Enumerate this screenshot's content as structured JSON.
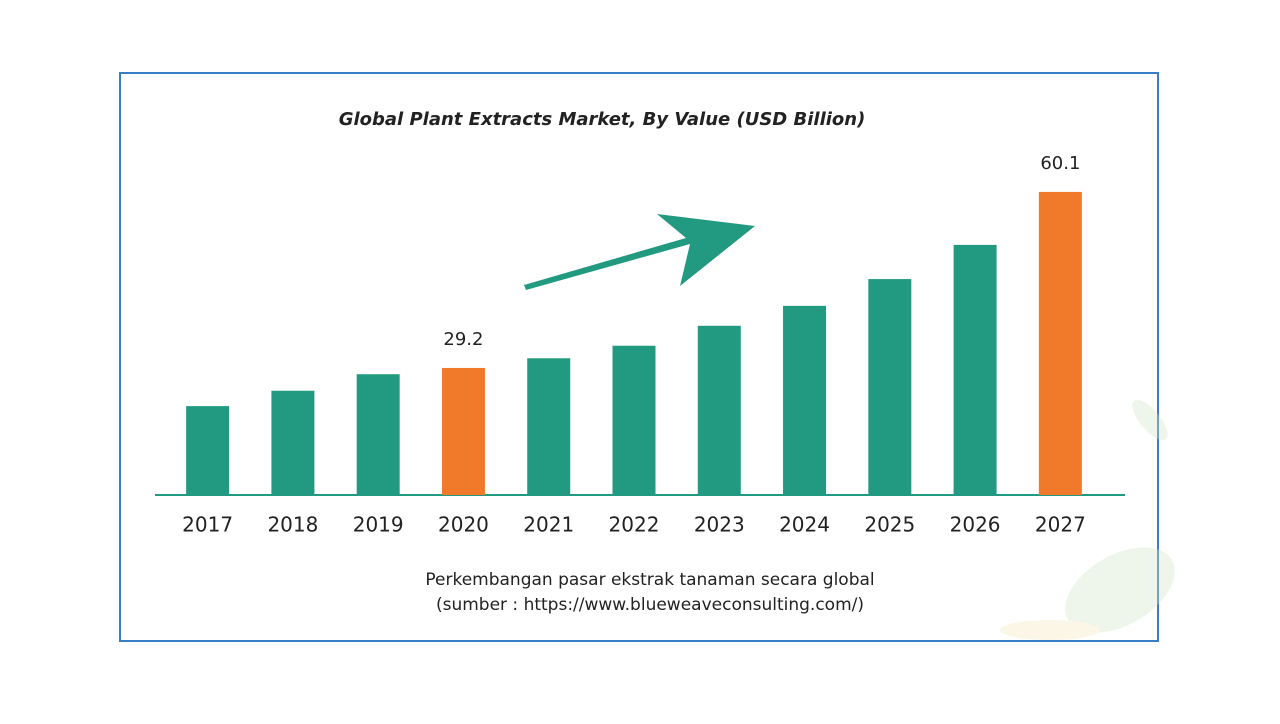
{
  "chart_data": {
    "type": "bar",
    "title": "Global Plant Extracts Market, By Value (USD Billion)",
    "categories": [
      "2017",
      "2018",
      "2019",
      "2020",
      "2021",
      "2022",
      "2023",
      "2024",
      "2025",
      "2026",
      "2027"
    ],
    "values": [
      22.5,
      25.2,
      28.1,
      29.2,
      30.9,
      33.1,
      36.6,
      40.1,
      44.8,
      50.8,
      60.1
    ],
    "value_labels": [
      null,
      null,
      null,
      "29.2",
      null,
      null,
      null,
      null,
      null,
      null,
      "60.1"
    ],
    "colors": [
      "#229a82",
      "#229a82",
      "#229a82",
      "#f07a2a",
      "#229a82",
      "#229a82",
      "#229a82",
      "#229a82",
      "#229a82",
      "#229a82",
      "#f07a2a"
    ],
    "ylim": [
      6.9,
      65
    ],
    "caption": [
      "Perkembangan pasar ekstrak tanaman secara global",
      "(sumber : https://www.blueweaveconsulting.com/)"
    ]
  }
}
